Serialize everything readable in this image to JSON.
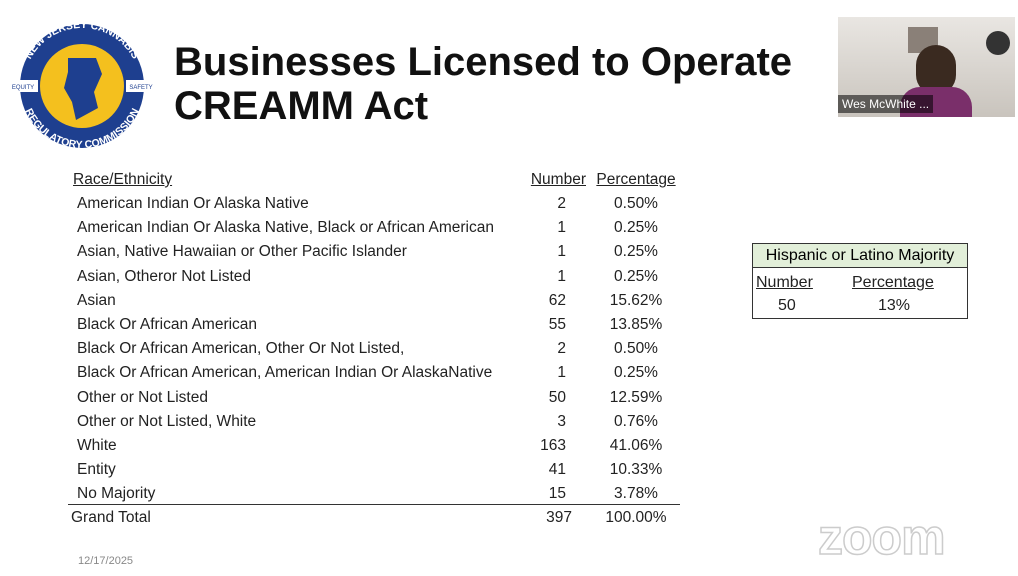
{
  "header": {
    "title_line1": "Businesses Licensed to Operate",
    "title_line2": "CREAMM Act"
  },
  "logo": {
    "top": "NEW JERSEY CANNABIS",
    "bottom": "REGULATORY COMMISSION",
    "left": "EQUITY",
    "right": "SAFETY"
  },
  "table": {
    "columns": [
      "Race/Ethnicity",
      "Number",
      "Percentage"
    ],
    "rows": [
      [
        "American Indian Or Alaska Native",
        2,
        "0.50%"
      ],
      [
        "American Indian Or Alaska Native, Black or African American",
        1,
        "0.25%"
      ],
      [
        "Asian, Native Hawaiian or Other Pacific Islander",
        1,
        "0.25%"
      ],
      [
        "Asian, Otheror Not Listed",
        1,
        "0.25%"
      ],
      [
        "Asian",
        62,
        "15.62%"
      ],
      [
        "Black Or African American",
        55,
        "13.85%"
      ],
      [
        "Black Or African American, Other Or Not Listed,",
        2,
        "0.50%"
      ],
      [
        "Black Or African American,  American Indian Or AlaskaNative",
        1,
        "0.25%"
      ],
      [
        "Other or Not Listed",
        50,
        "12.59%"
      ],
      [
        "Other or Not Listed, White",
        3,
        "0.76%"
      ],
      [
        "White",
        163,
        "41.06%"
      ],
      [
        "Entity",
        41,
        "10.33%"
      ],
      [
        "No Majority",
        15,
        "3.78%"
      ]
    ],
    "total": [
      "Grand Total",
      397,
      "100.00%"
    ]
  },
  "side_table": {
    "title": "Hispanic or Latino Majority",
    "columns": [
      "Number",
      "Percentage"
    ],
    "row": [
      50,
      "13%"
    ]
  },
  "footer": {
    "date": "12/17/2025"
  },
  "video": {
    "participant": "Wes McWhite ...",
    "watermark": "zoom"
  }
}
